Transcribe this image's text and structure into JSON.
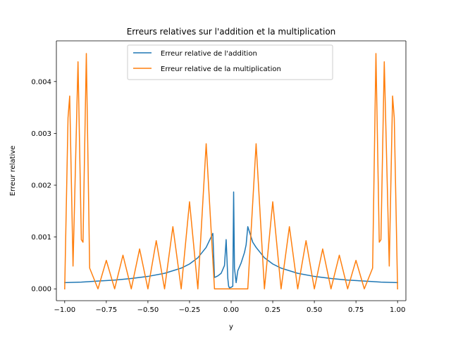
{
  "chart_data": {
    "type": "line",
    "title": "Erreurs relatives sur l'addition et la multiplication",
    "xlabel": "y",
    "ylabel": "Erreur relative",
    "xlim": [
      -1.05,
      1.05
    ],
    "ylim": [
      -0.000228,
      0.004785
    ],
    "xticks": [
      -1.0,
      -0.75,
      -0.5,
      -0.25,
      0.0,
      0.25,
      0.5,
      0.75,
      1.0
    ],
    "xtick_labels": [
      "−1.00",
      "−0.75",
      "−0.50",
      "−0.25",
      "0.00",
      "0.25",
      "0.50",
      "0.75",
      "1.00"
    ],
    "yticks": [
      0.0,
      0.001,
      0.002,
      0.003,
      0.004
    ],
    "ytick_labels": [
      "0.000",
      "0.001",
      "0.002",
      "0.003",
      "0.004"
    ],
    "grid": false,
    "legend_position": "top-center",
    "series": [
      {
        "name": "Erreur relative de l'addition",
        "color": "#1f77b4",
        "points": [
          [
            -1.0,
            0.00012
          ],
          [
            -0.9,
            0.00013
          ],
          [
            -0.8,
            0.00015
          ],
          [
            -0.7,
            0.00017
          ],
          [
            -0.6,
            0.0002
          ],
          [
            -0.5,
            0.00024
          ],
          [
            -0.4,
            0.0003
          ],
          [
            -0.3,
            0.0004
          ],
          [
            -0.25,
            0.00048
          ],
          [
            -0.2,
            0.0006
          ],
          [
            -0.15,
            0.0008
          ],
          [
            -0.11,
            0.00107
          ],
          [
            -0.1,
            0.00022
          ],
          [
            -0.08,
            0.00025
          ],
          [
            -0.06,
            0.0003
          ],
          [
            -0.04,
            0.00045
          ],
          [
            -0.03,
            0.00095
          ],
          [
            -0.02,
            0.0002
          ],
          [
            -0.015,
            5e-05
          ],
          [
            -0.01,
            2e-05
          ],
          [
            0.0,
            3e-05
          ],
          [
            0.01,
            5e-05
          ],
          [
            0.015,
            0.00187
          ],
          [
            0.02,
            0.0004
          ],
          [
            0.03,
            0.00012
          ],
          [
            0.04,
            0.00035
          ],
          [
            0.06,
            0.0005
          ],
          [
            0.08,
            0.0007
          ],
          [
            0.09,
            0.00085
          ],
          [
            0.1,
            0.0012
          ],
          [
            0.13,
            0.0009
          ],
          [
            0.15,
            0.0008
          ],
          [
            0.2,
            0.0006
          ],
          [
            0.25,
            0.00048
          ],
          [
            0.3,
            0.0004
          ],
          [
            0.4,
            0.0003
          ],
          [
            0.5,
            0.00024
          ],
          [
            0.6,
            0.0002
          ],
          [
            0.7,
            0.00017
          ],
          [
            0.8,
            0.00015
          ],
          [
            0.9,
            0.00013
          ],
          [
            1.0,
            0.00012
          ]
        ]
      },
      {
        "name": "Erreur relative de la multiplication",
        "color": "#ff7f0e",
        "points": [
          [
            -1.0,
            0.0
          ],
          [
            -0.98,
            0.0033
          ],
          [
            -0.97,
            0.00372
          ],
          [
            -0.95,
            0.00044
          ],
          [
            -0.92,
            0.00438
          ],
          [
            -0.9,
            0.00095
          ],
          [
            -0.89,
            0.0009
          ],
          [
            -0.87,
            0.00454
          ],
          [
            -0.85,
            0.0004
          ],
          [
            -0.8,
            0.0
          ],
          [
            -0.75,
            0.00055
          ],
          [
            -0.7,
            0.0
          ],
          [
            -0.65,
            0.00065
          ],
          [
            -0.6,
            0.0
          ],
          [
            -0.55,
            0.00077
          ],
          [
            -0.5,
            0.0
          ],
          [
            -0.45,
            0.00093
          ],
          [
            -0.4,
            0.0
          ],
          [
            -0.35,
            0.0012
          ],
          [
            -0.3,
            0.0
          ],
          [
            -0.25,
            0.00168
          ],
          [
            -0.2,
            0.0
          ],
          [
            -0.15,
            0.0028
          ],
          [
            -0.1,
            0.0
          ],
          [
            -0.09,
            0.0
          ],
          [
            0.09,
            0.0
          ],
          [
            0.1,
            0.0
          ],
          [
            0.15,
            0.0028
          ],
          [
            0.2,
            0.0
          ],
          [
            0.25,
            0.00168
          ],
          [
            0.3,
            0.0
          ],
          [
            0.35,
            0.0012
          ],
          [
            0.4,
            0.0
          ],
          [
            0.45,
            0.00093
          ],
          [
            0.5,
            0.0
          ],
          [
            0.55,
            0.00077
          ],
          [
            0.6,
            0.0
          ],
          [
            0.65,
            0.00065
          ],
          [
            0.7,
            0.0
          ],
          [
            0.75,
            0.00055
          ],
          [
            0.8,
            0.0
          ],
          [
            0.85,
            0.0004
          ],
          [
            0.87,
            0.00454
          ],
          [
            0.89,
            0.0009
          ],
          [
            0.9,
            0.00095
          ],
          [
            0.92,
            0.00438
          ],
          [
            0.95,
            0.00044
          ],
          [
            0.97,
            0.00372
          ],
          [
            0.98,
            0.0033
          ],
          [
            1.0,
            0.0
          ]
        ]
      }
    ]
  }
}
